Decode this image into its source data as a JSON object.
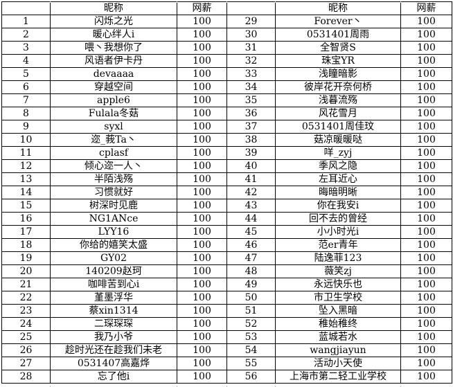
{
  "table": {
    "headers": [
      "",
      "昵称",
      "网薪",
      "",
      "昵称",
      "网薪"
    ],
    "left_rows": [
      {
        "num": "1",
        "nickname": "闪烁之光",
        "salary": "100"
      },
      {
        "num": "2",
        "nickname": "暖心绊人i",
        "salary": "100"
      },
      {
        "num": "3",
        "nickname": "喂丶我想你了",
        "salary": "100"
      },
      {
        "num": "4",
        "nickname": "风语者伊卡丹",
        "salary": "100"
      },
      {
        "num": "5",
        "nickname": "devaaaa",
        "salary": "100"
      },
      {
        "num": "6",
        "nickname": "穿越空间",
        "salary": "100"
      },
      {
        "num": "7",
        "nickname": "apple6",
        "salary": "100"
      },
      {
        "num": "8",
        "nickname": "Fulala冬菇",
        "salary": "100"
      },
      {
        "num": "9",
        "nickname": "syxl",
        "salary": "100"
      },
      {
        "num": "10",
        "nickname": "迩_莪Ta丶",
        "salary": "100"
      },
      {
        "num": "11",
        "nickname": "cplasf",
        "salary": "100"
      },
      {
        "num": "12",
        "nickname": "倾心迩一人丶",
        "salary": "100"
      },
      {
        "num": "13",
        "nickname": "半陌浅殇",
        "salary": "100"
      },
      {
        "num": "14",
        "nickname": "习惯就好",
        "salary": "100"
      },
      {
        "num": "15",
        "nickname": "树深时见鹿",
        "salary": "100"
      },
      {
        "num": "16",
        "nickname": "NG1ANce",
        "salary": "100"
      },
      {
        "num": "17",
        "nickname": "LYY16",
        "salary": "100"
      },
      {
        "num": "18",
        "nickname": "你给的嬉笑太盛",
        "salary": "100"
      },
      {
        "num": "19",
        "nickname": "GY02",
        "salary": "100"
      },
      {
        "num": "20",
        "nickname": "140209赵珂",
        "salary": "100"
      },
      {
        "num": "21",
        "nickname": "咖啡苦到心i",
        "salary": "100"
      },
      {
        "num": "22",
        "nickname": "堇墨浮华",
        "salary": "100"
      },
      {
        "num": "23",
        "nickname": "蔡xin1314",
        "salary": "100"
      },
      {
        "num": "24",
        "nickname": "二琛琛琛",
        "salary": "100"
      },
      {
        "num": "25",
        "nickname": "我乃小爷",
        "salary": "100"
      },
      {
        "num": "26",
        "nickname": "趁时光还在趁我们未老",
        "salary": "100"
      },
      {
        "num": "27",
        "nickname": "0531407高嘉烨",
        "salary": "100"
      },
      {
        "num": "28",
        "nickname": "忘了他i",
        "salary": "100"
      }
    ],
    "right_rows": [
      {
        "num": "29",
        "nickname": "Forever丶",
        "salary": "100"
      },
      {
        "num": "30",
        "nickname": "0531401周雨",
        "salary": "100"
      },
      {
        "num": "31",
        "nickname": "全智贤S",
        "salary": "100"
      },
      {
        "num": "32",
        "nickname": "珠宝YR",
        "salary": "100"
      },
      {
        "num": "33",
        "nickname": "浅瞳暗影",
        "salary": "100"
      },
      {
        "num": "34",
        "nickname": "彼岸花开奈何桥",
        "salary": "100"
      },
      {
        "num": "35",
        "nickname": "浅暮流殇",
        "salary": "100"
      },
      {
        "num": "36",
        "nickname": "风花雪月",
        "salary": "100"
      },
      {
        "num": "37",
        "nickname": "0531401周佳玟",
        "salary": "100"
      },
      {
        "num": "38",
        "nickname": "菇凉暖暖哒",
        "salary": "100"
      },
      {
        "num": "39",
        "nickname": "咩_zyj",
        "salary": "100"
      },
      {
        "num": "40",
        "nickname": "季风之隐",
        "salary": "100"
      },
      {
        "num": "41",
        "nickname": "左耳近心",
        "salary": "100"
      },
      {
        "num": "42",
        "nickname": "晦暗明晰",
        "salary": "100"
      },
      {
        "num": "43",
        "nickname": "你在我安i",
        "salary": "100"
      },
      {
        "num": "44",
        "nickname": "回不去的曾经",
        "salary": "100"
      },
      {
        "num": "45",
        "nickname": "小小时光i",
        "salary": "100"
      },
      {
        "num": "46",
        "nickname": "范er青年",
        "salary": "100"
      },
      {
        "num": "47",
        "nickname": "陆逸菲123",
        "salary": "100"
      },
      {
        "num": "48",
        "nickname": "薇笑zj",
        "salary": "100"
      },
      {
        "num": "49",
        "nickname": "永远快乐也",
        "salary": "100"
      },
      {
        "num": "50",
        "nickname": "市卫生学校",
        "salary": "100"
      },
      {
        "num": "51",
        "nickname": "坠入黑暗",
        "salary": "100"
      },
      {
        "num": "52",
        "nickname": "稚始稚终",
        "salary": "100"
      },
      {
        "num": "53",
        "nickname": "蓝城若水",
        "salary": "100"
      },
      {
        "num": "54",
        "nickname": "wangjiayun",
        "salary": "100"
      },
      {
        "num": "55",
        "nickname": "活动小天使",
        "salary": "100"
      },
      {
        "num": "56",
        "nickname": "上海市第二轻工业学校",
        "salary": "100"
      }
    ]
  },
  "colors": {
    "border": "#000000",
    "text": "#000000",
    "background": "#ffffff",
    "gridline_stub": "#c8c8c8"
  }
}
